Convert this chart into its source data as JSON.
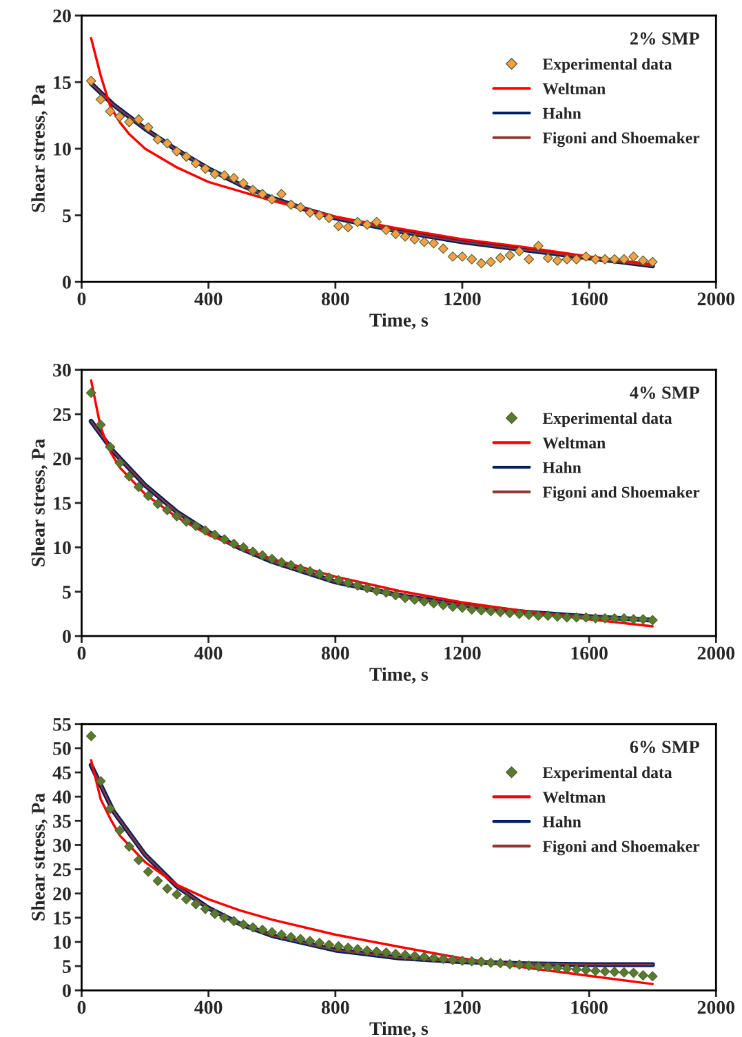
{
  "chart_data": [
    {
      "type": "line",
      "xlabel": "Time, s",
      "ylabel": "Shear stress, Pa",
      "legend_title": "2% SMP",
      "legend": "top right",
      "grid": false,
      "xlim": [
        0,
        2000
      ],
      "xticks": [
        0,
        400,
        800,
        1200,
        1600,
        2000
      ],
      "ylim": [
        0,
        20
      ],
      "yticks": [
        0,
        5,
        10,
        15,
        20
      ],
      "series": [
        {
          "name": "Experimental data",
          "type": "scatter",
          "marker": "diamond",
          "color": "#f4a04a",
          "x": [
            30,
            60,
            90,
            120,
            150,
            180,
            210,
            240,
            270,
            300,
            330,
            360,
            390,
            420,
            450,
            480,
            510,
            540,
            570,
            600,
            630,
            660,
            690,
            720,
            750,
            780,
            810,
            840,
            870,
            900,
            930,
            960,
            990,
            1020,
            1050,
            1080,
            1110,
            1140,
            1170,
            1200,
            1230,
            1260,
            1290,
            1320,
            1350,
            1380,
            1410,
            1440,
            1470,
            1500,
            1530,
            1560,
            1590,
            1620,
            1650,
            1680,
            1710,
            1740,
            1770,
            1800
          ],
          "values": [
            15.1,
            13.7,
            12.8,
            12.4,
            12.0,
            12.2,
            11.6,
            10.7,
            10.4,
            9.8,
            9.4,
            8.9,
            8.5,
            8.1,
            8.0,
            7.8,
            7.4,
            6.9,
            6.6,
            6.2,
            6.6,
            5.8,
            5.6,
            5.2,
            5.0,
            4.8,
            4.2,
            4.1,
            4.5,
            4.3,
            4.5,
            3.9,
            3.6,
            3.4,
            3.2,
            3.0,
            2.9,
            2.5,
            1.9,
            1.9,
            1.7,
            1.4,
            1.5,
            1.8,
            2.0,
            2.3,
            1.7,
            2.7,
            1.8,
            1.6,
            1.7,
            1.7,
            1.9,
            1.7,
            1.7,
            1.7,
            1.7,
            1.9,
            1.6,
            1.5
          ]
        },
        {
          "name": "Weltman",
          "color": "#ff0000",
          "x": [
            30,
            60,
            90,
            120,
            150,
            200,
            300,
            400,
            500,
            600,
            700,
            800,
            1000,
            1200,
            1400,
            1600,
            1800
          ],
          "values": [
            18.3,
            15.5,
            13.2,
            12.0,
            11.1,
            10.0,
            8.6,
            7.5,
            6.8,
            6.1,
            5.5,
            4.9,
            4.0,
            3.2,
            2.6,
            1.9,
            1.3
          ]
        },
        {
          "name": "Hahn",
          "color": "#002060",
          "x": [
            30,
            100,
            200,
            300,
            400,
            500,
            600,
            700,
            800,
            900,
            1000,
            1200,
            1400,
            1600,
            1800
          ],
          "values": [
            14.9,
            13.3,
            11.5,
            9.9,
            8.5,
            7.3,
            6.3,
            5.5,
            4.8,
            4.3,
            3.8,
            3.0,
            2.4,
            1.8,
            1.2
          ]
        },
        {
          "name": "Figoni and Shoemaker",
          "color": "#953735",
          "x": [
            30,
            100,
            200,
            300,
            400,
            500,
            600,
            700,
            800,
            900,
            1000,
            1200,
            1400,
            1600,
            1800
          ],
          "values": [
            14.9,
            13.3,
            11.5,
            9.9,
            8.5,
            7.3,
            6.3,
            5.5,
            4.8,
            4.3,
            3.8,
            3.0,
            2.4,
            1.8,
            1.2
          ]
        }
      ]
    },
    {
      "type": "line",
      "xlabel": "Time, s",
      "ylabel": "Shear stress, Pa",
      "legend_title": "4% SMP",
      "legend": "top right",
      "grid": false,
      "xlim": [
        0,
        2000
      ],
      "xticks": [
        0,
        400,
        800,
        1200,
        1600,
        2000
      ],
      "ylim": [
        0,
        30
      ],
      "yticks": [
        0,
        5,
        10,
        15,
        20,
        25,
        30
      ],
      "series": [
        {
          "name": "Experimental data",
          "type": "scatter",
          "marker": "diamond",
          "color": "#5a7a32",
          "x": [
            30,
            60,
            90,
            120,
            150,
            180,
            210,
            240,
            270,
            300,
            330,
            360,
            390,
            420,
            450,
            480,
            510,
            540,
            570,
            600,
            630,
            660,
            690,
            720,
            750,
            780,
            810,
            840,
            870,
            900,
            930,
            960,
            990,
            1020,
            1050,
            1080,
            1110,
            1140,
            1170,
            1200,
            1230,
            1260,
            1290,
            1320,
            1350,
            1380,
            1410,
            1440,
            1470,
            1500,
            1530,
            1560,
            1590,
            1620,
            1650,
            1680,
            1710,
            1740,
            1770,
            1800
          ],
          "values": [
            27.4,
            23.8,
            21.3,
            19.5,
            18.0,
            16.8,
            15.8,
            14.9,
            14.2,
            13.5,
            12.9,
            12.4,
            11.9,
            11.4,
            10.9,
            10.4,
            10.0,
            9.5,
            9.1,
            8.7,
            8.3,
            8.0,
            7.6,
            7.3,
            7.0,
            6.6,
            6.3,
            6.0,
            5.7,
            5.4,
            5.1,
            4.9,
            4.6,
            4.3,
            4.1,
            3.9,
            3.7,
            3.5,
            3.3,
            3.2,
            3.0,
            2.9,
            2.8,
            2.7,
            2.6,
            2.5,
            2.4,
            2.3,
            2.3,
            2.2,
            2.1,
            2.1,
            2.1,
            2.0,
            2.0,
            2.0,
            2.0,
            1.9,
            1.9,
            1.8
          ]
        },
        {
          "name": "Weltman",
          "color": "#ff0000",
          "x": [
            30,
            60,
            90,
            120,
            200,
            300,
            400,
            500,
            600,
            800,
            1000,
            1200,
            1400,
            1600,
            1800
          ],
          "values": [
            28.8,
            23.5,
            20.8,
            19.0,
            16.0,
            13.4,
            11.4,
            10.0,
            8.7,
            6.7,
            5.1,
            3.8,
            2.8,
            1.9,
            1.1
          ]
        },
        {
          "name": "Hahn",
          "color": "#002060",
          "x": [
            30,
            100,
            200,
            300,
            400,
            500,
            600,
            800,
            1000,
            1200,
            1400,
            1600,
            1800
          ],
          "values": [
            24.2,
            20.8,
            17.0,
            14.0,
            11.7,
            9.9,
            8.4,
            6.1,
            4.6,
            3.5,
            2.7,
            2.2,
            1.8
          ]
        },
        {
          "name": "Figoni and Shoemaker",
          "color": "#953735",
          "x": [
            30,
            100,
            200,
            300,
            400,
            500,
            600,
            800,
            1000,
            1200,
            1400,
            1600,
            1800
          ],
          "values": [
            24.2,
            20.8,
            17.0,
            14.0,
            11.7,
            9.9,
            8.4,
            6.1,
            4.6,
            3.5,
            2.7,
            2.2,
            1.8
          ]
        }
      ]
    },
    {
      "type": "line",
      "xlabel": "Time, s",
      "ylabel": "Shear stress, Pa",
      "legend_title": "6% SMP",
      "legend": "top right",
      "grid": false,
      "xlim": [
        0,
        2000
      ],
      "xticks": [
        0,
        400,
        800,
        1200,
        1600,
        2000
      ],
      "ylim": [
        0,
        55
      ],
      "yticks": [
        0,
        5,
        10,
        15,
        20,
        25,
        30,
        35,
        40,
        45,
        50,
        55
      ],
      "series": [
        {
          "name": "Experimental data",
          "type": "scatter",
          "marker": "diamond",
          "color": "#5a7a32",
          "x": [
            30,
            60,
            90,
            120,
            150,
            180,
            210,
            240,
            270,
            300,
            330,
            360,
            390,
            420,
            450,
            480,
            510,
            540,
            570,
            600,
            630,
            660,
            690,
            720,
            750,
            780,
            810,
            840,
            870,
            900,
            930,
            960,
            990,
            1020,
            1050,
            1080,
            1110,
            1140,
            1170,
            1200,
            1230,
            1260,
            1290,
            1320,
            1350,
            1380,
            1410,
            1440,
            1470,
            1500,
            1530,
            1560,
            1590,
            1620,
            1650,
            1680,
            1710,
            1740,
            1770,
            1800
          ],
          "values": [
            52.5,
            43.2,
            37.5,
            33.0,
            29.7,
            26.9,
            24.5,
            22.6,
            21.0,
            19.8,
            18.8,
            17.8,
            16.8,
            15.8,
            15.0,
            14.3,
            13.6,
            13.0,
            12.5,
            12.0,
            11.5,
            11.0,
            10.6,
            10.2,
            9.8,
            9.4,
            9.1,
            8.8,
            8.5,
            8.2,
            8.0,
            7.8,
            7.5,
            7.3,
            7.1,
            6.9,
            6.7,
            6.5,
            6.3,
            6.1,
            6.0,
            5.9,
            5.7,
            5.6,
            5.4,
            5.3,
            5.1,
            4.9,
            4.8,
            4.6,
            4.5,
            4.3,
            4.2,
            4.0,
            3.9,
            3.8,
            3.7,
            3.6,
            3.1,
            2.9
          ]
        },
        {
          "name": "Weltman",
          "color": "#ff0000",
          "x": [
            30,
            60,
            90,
            120,
            200,
            300,
            400,
            500,
            600,
            800,
            1000,
            1200,
            1400,
            1600,
            1800
          ],
          "values": [
            47.5,
            39.5,
            35.5,
            32.0,
            26.5,
            21.8,
            18.8,
            16.5,
            14.6,
            11.5,
            9.0,
            6.6,
            4.7,
            3.0,
            1.3
          ]
        },
        {
          "name": "Hahn",
          "color": "#002060",
          "x": [
            30,
            100,
            200,
            300,
            400,
            500,
            600,
            800,
            1000,
            1200,
            1400,
            1600,
            1800
          ],
          "values": [
            46.5,
            37.0,
            28.0,
            21.5,
            17.0,
            13.7,
            11.3,
            8.3,
            6.7,
            5.9,
            5.5,
            5.3,
            5.3
          ]
        },
        {
          "name": "Figoni and Shoemaker",
          "color": "#953735",
          "x": [
            30,
            100,
            200,
            300,
            400,
            500,
            600,
            800,
            1000,
            1200,
            1400,
            1600,
            1800
          ],
          "values": [
            46.5,
            37.0,
            28.0,
            21.5,
            17.0,
            13.7,
            11.3,
            8.3,
            6.7,
            5.9,
            5.5,
            5.3,
            5.3
          ]
        }
      ]
    }
  ]
}
